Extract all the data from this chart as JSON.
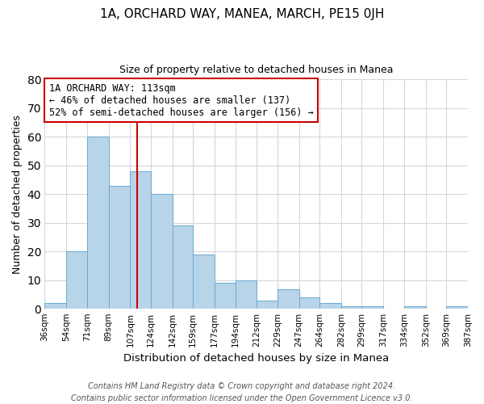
{
  "title": "1A, ORCHARD WAY, MANEA, MARCH, PE15 0JH",
  "subtitle": "Size of property relative to detached houses in Manea",
  "xlabel": "Distribution of detached houses by size in Manea",
  "ylabel": "Number of detached properties",
  "bar_color": "#b8d4e8",
  "bar_edge_color": "#6aaad4",
  "background_color": "#ffffff",
  "grid_color": "#d0d8e0",
  "vline_x": 113,
  "vline_color": "#cc0000",
  "bin_edges": [
    36,
    54,
    71,
    89,
    107,
    124,
    142,
    159,
    177,
    194,
    212,
    229,
    247,
    264,
    282,
    299,
    317,
    334,
    352,
    369,
    387
  ],
  "bar_heights": [
    2,
    20,
    60,
    43,
    48,
    40,
    29,
    19,
    9,
    10,
    3,
    7,
    4,
    2,
    1,
    1,
    0,
    1,
    0,
    1
  ],
  "tick_labels": [
    "36sqm",
    "54sqm",
    "71sqm",
    "89sqm",
    "107sqm",
    "124sqm",
    "142sqm",
    "159sqm",
    "177sqm",
    "194sqm",
    "212sqm",
    "229sqm",
    "247sqm",
    "264sqm",
    "282sqm",
    "299sqm",
    "317sqm",
    "334sqm",
    "352sqm",
    "369sqm",
    "387sqm"
  ],
  "ylim": [
    0,
    80
  ],
  "yticks": [
    0,
    10,
    20,
    30,
    40,
    50,
    60,
    70,
    80
  ],
  "annotation_title": "1A ORCHARD WAY: 113sqm",
  "annotation_line1": "← 46% of detached houses are smaller (137)",
  "annotation_line2": "52% of semi-detached houses are larger (156) →",
  "footer_line1": "Contains HM Land Registry data © Crown copyright and database right 2024.",
  "footer_line2": "Contains public sector information licensed under the Open Government Licence v3.0."
}
